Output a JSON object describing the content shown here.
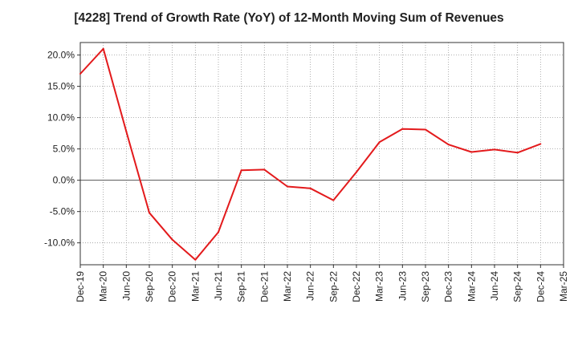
{
  "chart_data": {
    "type": "line",
    "title": "[4228]  Trend of Growth Rate (YoY) of 12-Month Moving Sum of Revenues",
    "xlabel": "",
    "ylabel": "",
    "categories": [
      "Dec-19",
      "Mar-20",
      "Jun-20",
      "Sep-20",
      "Dec-20",
      "Mar-21",
      "Jun-21",
      "Sep-21",
      "Dec-21",
      "Mar-22",
      "Jun-22",
      "Sep-22",
      "Dec-22",
      "Mar-23",
      "Jun-23",
      "Sep-23",
      "Dec-23",
      "Mar-24",
      "Jun-24",
      "Sep-24",
      "Dec-24",
      "Mar-25"
    ],
    "series": [
      {
        "values": [
          17.0,
          21.0,
          7.8,
          -5.2,
          -9.5,
          -12.7,
          -8.3,
          1.6,
          1.7,
          -1.0,
          -1.3,
          -3.2,
          1.3,
          6.1,
          8.2,
          8.1,
          5.7,
          4.5,
          4.9,
          4.4,
          5.8,
          null
        ]
      }
    ],
    "ylim": [
      -13.5,
      22.0
    ],
    "yticks": [
      -10,
      -5,
      0,
      5,
      10,
      15,
      20
    ],
    "ytick_labels": [
      "-10.0%",
      "-5.0%",
      "0.0%",
      "5.0%",
      "10.0%",
      "15.0%",
      "20.0%"
    ],
    "grid": true,
    "line_color": "#e31a1c"
  }
}
